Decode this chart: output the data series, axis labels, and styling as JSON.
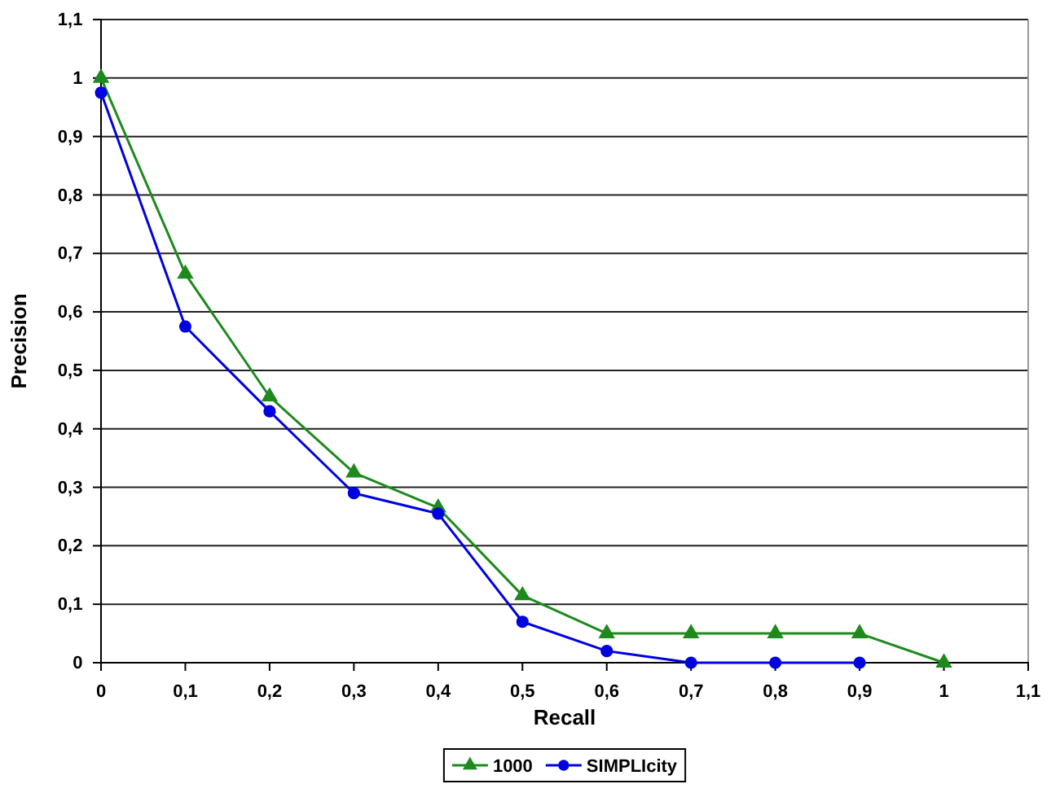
{
  "chart_data": {
    "type": "line",
    "xlabel": "Recall",
    "ylabel": "Precision",
    "x": [
      0,
      0.1,
      0.2,
      0.3,
      0.4,
      0.5,
      0.6,
      0.7,
      0.8,
      0.9,
      1
    ],
    "series": [
      {
        "name": "1000",
        "color": "#1e8a1e",
        "marker": "triangle",
        "values": [
          1.0,
          0.665,
          0.455,
          0.325,
          0.265,
          0.115,
          0.05,
          0.05,
          0.05,
          0.05,
          0
        ]
      },
      {
        "name": "SIMPLIcity",
        "color": "#0000e0",
        "marker": "circle",
        "values": [
          0.975,
          0.575,
          0.43,
          0.29,
          0.255,
          0.07,
          0.02,
          0,
          0,
          0,
          null
        ]
      }
    ],
    "xlim": [
      0,
      1.1
    ],
    "ylim": [
      0,
      1.1
    ],
    "xticks": [
      {
        "value": 0,
        "label": "0"
      },
      {
        "value": 0.1,
        "label": "0,1"
      },
      {
        "value": 0.2,
        "label": "0,2"
      },
      {
        "value": 0.3,
        "label": "0,3"
      },
      {
        "value": 0.4,
        "label": "0,4"
      },
      {
        "value": 0.5,
        "label": "0,5"
      },
      {
        "value": 0.6,
        "label": "0,6"
      },
      {
        "value": 0.7,
        "label": "0,7"
      },
      {
        "value": 0.8,
        "label": "0,8"
      },
      {
        "value": 0.9,
        "label": "0,9"
      },
      {
        "value": 1,
        "label": "1"
      },
      {
        "value": 1.1,
        "label": "1,1"
      }
    ],
    "yticks": [
      {
        "value": 0,
        "label": "0"
      },
      {
        "value": 0.1,
        "label": "0,1"
      },
      {
        "value": 0.2,
        "label": "0,2"
      },
      {
        "value": 0.3,
        "label": "0,3"
      },
      {
        "value": 0.4,
        "label": "0,4"
      },
      {
        "value": 0.5,
        "label": "0,5"
      },
      {
        "value": 0.6,
        "label": "0,6"
      },
      {
        "value": 0.7,
        "label": "0,7"
      },
      {
        "value": 0.8,
        "label": "0,8"
      },
      {
        "value": 0.9,
        "label": "0,9"
      },
      {
        "value": 1,
        "label": "1"
      },
      {
        "value": 1.1,
        "label": "1,1"
      }
    ],
    "grid": "y",
    "legend": "bottom"
  }
}
